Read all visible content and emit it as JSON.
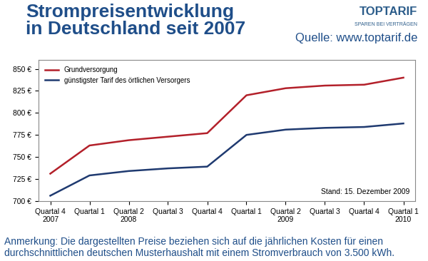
{
  "chart_data": {
    "type": "line",
    "title": "Strompreisentwicklung\nin Deutschland seit 2007",
    "source": "Quelle: www.toptarif.de",
    "logo": {
      "name": "TOPTARIF",
      "slogan": "SPAREN BEI VERTRÄGEN"
    },
    "annotation": "Stand: 15. Dezember 2009",
    "note": "Anmerkung: Die dargestellten Preise beziehen sich auf die jährlichen Kosten für einen durchschnittlichen deutschen Musterhaushalt mit einem Stromverbrauch von 3.500 kWh.",
    "categories": [
      "Quartal 4\n2007",
      "Quartal 1",
      "Quartal 2\n2008",
      "Quartal 3",
      "Quartal 4",
      "Quartal 1",
      "Quartal 2\n2009",
      "Quartal 3",
      "Quartal 4",
      "Quartal 1\n2010"
    ],
    "series": [
      {
        "name": "Grundversorgung",
        "color": "#b3202a",
        "values": [
          731,
          763,
          769,
          773,
          777,
          820,
          828,
          831,
          832,
          840
        ]
      },
      {
        "name": "günstigster Tarif des örtlichen Versorgers",
        "color": "#1f3a70",
        "values": [
          706,
          729,
          734,
          737,
          739,
          775,
          781,
          783,
          784,
          788
        ]
      }
    ],
    "ylim": [
      700,
      860
    ],
    "yticks": [
      {
        "value": 700,
        "label": "700 €"
      },
      {
        "value": 725,
        "label": "725 €"
      },
      {
        "value": 750,
        "label": "750 €"
      },
      {
        "value": 775,
        "label": "775 €"
      },
      {
        "value": 800,
        "label": "800 €"
      },
      {
        "value": 825,
        "label": "825 €"
      },
      {
        "value": 850,
        "label": "850 €"
      }
    ],
    "grid": false,
    "legend": "upper left"
  }
}
